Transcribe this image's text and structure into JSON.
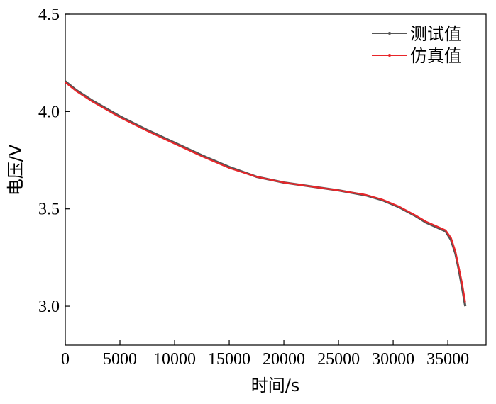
{
  "chart_data": {
    "type": "line",
    "title": "",
    "xlabel": "时间/s",
    "ylabel": "电压/V",
    "xlim": [
      0,
      38500
    ],
    "ylim": [
      2.8,
      4.5
    ],
    "x_ticks": [
      0,
      5000,
      10000,
      15000,
      20000,
      25000,
      30000,
      35000
    ],
    "x_tick_labels": [
      "0",
      "5000",
      "10000",
      "15000",
      "20000",
      "25000",
      "30000",
      "35000"
    ],
    "y_ticks": [
      3.0,
      3.5,
      4.0,
      4.5
    ],
    "y_tick_labels": [
      "3.0",
      "3.5",
      "4.0",
      "4.5"
    ],
    "grid": false,
    "legend_position": "top-right",
    "series": [
      {
        "name": "测试值",
        "color": "#555555",
        "x": [
          0,
          1000,
          2500,
          5000,
          7500,
          10000,
          12500,
          15000,
          17500,
          20000,
          22500,
          25000,
          27500,
          29000,
          30500,
          32000,
          33000,
          34000,
          34800,
          35300,
          35700,
          36000,
          36300,
          36600
        ],
        "y": [
          4.155,
          4.11,
          4.055,
          3.975,
          3.905,
          3.84,
          3.775,
          3.715,
          3.665,
          3.635,
          3.615,
          3.595,
          3.57,
          3.545,
          3.51,
          3.465,
          3.43,
          3.405,
          3.385,
          3.34,
          3.27,
          3.19,
          3.1,
          3.0
        ]
      },
      {
        "name": "仿真值",
        "color": "#e8262a",
        "x": [
          0,
          1000,
          2500,
          5000,
          7500,
          10000,
          12500,
          15000,
          17500,
          20000,
          22500,
          25000,
          27500,
          29000,
          30500,
          32000,
          33000,
          34000,
          34800,
          35300,
          35700,
          36000,
          36300,
          36600
        ],
        "y": [
          4.15,
          4.105,
          4.05,
          3.97,
          3.9,
          3.835,
          3.77,
          3.71,
          3.665,
          3.635,
          3.615,
          3.595,
          3.572,
          3.548,
          3.513,
          3.468,
          3.435,
          3.41,
          3.39,
          3.35,
          3.28,
          3.2,
          3.12,
          3.02
        ]
      }
    ]
  }
}
